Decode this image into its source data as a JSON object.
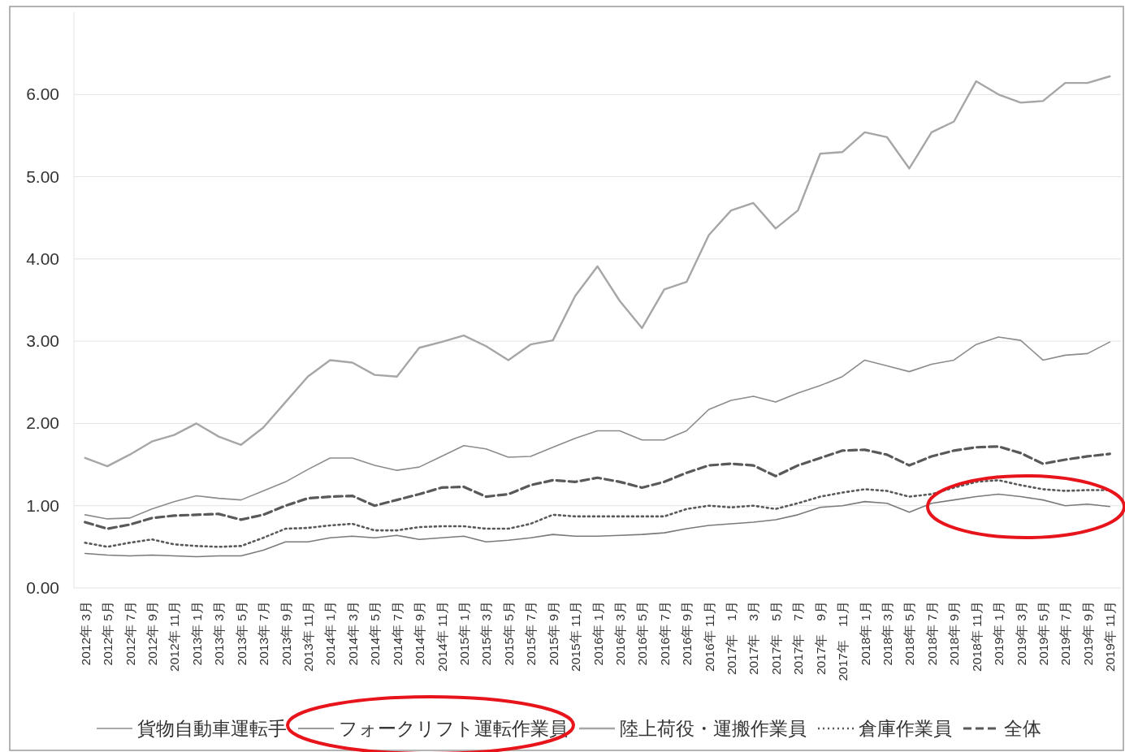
{
  "chart_data": {
    "type": "line",
    "categories": [
      "2012年 3月",
      "2012年 5月",
      "2012年 7月",
      "2012年 9月",
      "2012年 11月",
      "2013年 1月",
      "2013年 3月",
      "2013年 5月",
      "2013年 7月",
      "2013年 9月",
      "2013年 11月",
      "2014年 1月",
      "2014年 3月",
      "2014年 5月",
      "2014年 7月",
      "2014年 9月",
      "2014年 11月",
      "2015年 1月",
      "2015年 3月",
      "2015年 5月",
      "2015年 7月",
      "2015年 9月",
      "2015年 11月",
      "2016年 1月",
      "2016年 3月",
      "2016年 5月",
      "2016年 7月",
      "2016年 9月",
      "2016年 11月",
      "2017年　1月",
      "2017年　3月",
      "2017年　5月",
      "2017年　7月",
      "2017年　9月",
      "2017年　11月",
      "2018年 1月",
      "2018年 3月",
      "2018年 5月",
      "2018年 7月",
      "2018年 9月",
      "2018年 11月",
      "2019年 1月",
      "2019年 3月",
      "2019年 5月",
      "2019年 7月",
      "2019年 9月",
      "2019年 11月"
    ],
    "series": [
      {
        "name": "貨物自動車運転手",
        "color": "#8c8c8c",
        "line_style": "solid",
        "values": [
          0.89,
          0.84,
          0.85,
          0.96,
          1.05,
          1.12,
          1.09,
          1.07,
          1.18,
          1.29,
          1.44,
          1.58,
          1.58,
          1.49,
          1.43,
          1.47,
          1.6,
          1.73,
          1.69,
          1.59,
          1.6,
          1.71,
          1.82,
          1.91,
          1.91,
          1.8,
          1.8,
          1.91,
          2.17,
          2.28,
          2.33,
          2.26,
          2.37,
          2.46,
          2.57,
          2.77,
          2.7,
          2.63,
          2.72,
          2.77,
          2.96,
          3.05,
          3.01,
          2.77,
          2.83,
          2.85,
          2.99
        ]
      },
      {
        "name": "フォークリフト運転作業員",
        "color": "#7a7a7a",
        "line_style": "solid",
        "values": [
          0.42,
          0.4,
          0.39,
          0.4,
          0.39,
          0.38,
          0.39,
          0.39,
          0.46,
          0.56,
          0.56,
          0.61,
          0.63,
          0.61,
          0.64,
          0.59,
          0.61,
          0.63,
          0.56,
          0.58,
          0.61,
          0.65,
          0.63,
          0.63,
          0.64,
          0.65,
          0.67,
          0.72,
          0.76,
          0.78,
          0.8,
          0.83,
          0.89,
          0.98,
          1.0,
          1.05,
          1.03,
          0.92,
          1.03,
          1.07,
          1.11,
          1.14,
          1.11,
          1.07,
          1.0,
          1.02,
          0.99
        ]
      },
      {
        "name": "陸上荷役・運搬作業員",
        "color": "#a6a6a6",
        "line_style": "solid",
        "values": [
          1.58,
          1.48,
          1.62,
          1.78,
          1.86,
          2.0,
          1.84,
          1.74,
          1.95,
          2.26,
          2.57,
          2.77,
          2.74,
          2.59,
          2.57,
          2.92,
          2.99,
          3.07,
          2.94,
          2.77,
          2.96,
          3.01,
          3.55,
          3.91,
          3.49,
          3.16,
          3.63,
          3.72,
          4.29,
          4.59,
          4.68,
          4.37,
          4.59,
          5.28,
          5.3,
          5.54,
          5.48,
          5.1,
          5.54,
          5.67,
          6.16,
          6.0,
          5.9,
          5.92,
          6.14,
          6.14,
          6.22
        ]
      },
      {
        "name": "倉庫作業員",
        "color": "#595959",
        "line_style": "dotted",
        "values": [
          0.55,
          0.5,
          0.55,
          0.59,
          0.53,
          0.51,
          0.5,
          0.51,
          0.61,
          0.72,
          0.73,
          0.76,
          0.78,
          0.7,
          0.7,
          0.74,
          0.75,
          0.75,
          0.72,
          0.72,
          0.78,
          0.89,
          0.87,
          0.87,
          0.87,
          0.87,
          0.87,
          0.96,
          1.0,
          0.98,
          1.0,
          0.96,
          1.03,
          1.11,
          1.16,
          1.2,
          1.18,
          1.11,
          1.14,
          1.22,
          1.29,
          1.31,
          1.25,
          1.2,
          1.18,
          1.19,
          1.19
        ]
      },
      {
        "name": "全体",
        "color": "#595959",
        "line_style": "dashed",
        "values": [
          0.8,
          0.72,
          0.77,
          0.85,
          0.88,
          0.89,
          0.9,
          0.83,
          0.89,
          1.0,
          1.09,
          1.11,
          1.12,
          1.0,
          1.07,
          1.14,
          1.22,
          1.23,
          1.11,
          1.14,
          1.25,
          1.31,
          1.29,
          1.34,
          1.29,
          1.22,
          1.29,
          1.4,
          1.49,
          1.51,
          1.49,
          1.36,
          1.49,
          1.58,
          1.67,
          1.68,
          1.62,
          1.49,
          1.6,
          1.67,
          1.71,
          1.72,
          1.64,
          1.51,
          1.56,
          1.6,
          1.63
        ]
      }
    ],
    "ylim": [
      0,
      7
    ],
    "yticks": [
      {
        "value": 0,
        "label": "0.00"
      },
      {
        "value": 1,
        "label": "1.00"
      },
      {
        "value": 2,
        "label": "2.00"
      },
      {
        "value": 3,
        "label": "3.00"
      },
      {
        "value": 4,
        "label": "4.00"
      },
      {
        "value": 5,
        "label": "5.00"
      },
      {
        "value": 6,
        "label": "6.00"
      }
    ],
    "grid": "y",
    "legend": "bottom"
  }
}
